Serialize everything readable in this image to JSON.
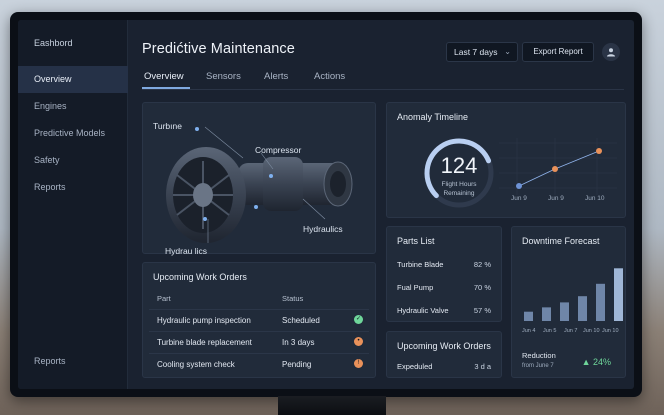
{
  "sidebar": {
    "brand": "Eashbord",
    "items": [
      {
        "label": "Overview"
      },
      {
        "label": "Engines"
      },
      {
        "label": "Predictive Models"
      },
      {
        "label": "Safety"
      },
      {
        "label": "Reports"
      }
    ],
    "bottom_item": "Reports"
  },
  "header": {
    "title": "Predićtive Maintenance",
    "range_selected": "Last 7 days",
    "export_label": "Export Report"
  },
  "tabs": [
    {
      "label": "Overview"
    },
    {
      "label": "Sensors"
    },
    {
      "label": "Alerts"
    },
    {
      "label": "Actions"
    }
  ],
  "engine": {
    "labels": {
      "turbine": "Turbıne",
      "compressor": "Compressor",
      "hydraulics_right": "Hydraulics",
      "hydraulics_left": "Hydrau lics"
    }
  },
  "work_orders": {
    "title": "Upcoming Work Orders",
    "columns": [
      "Part",
      "Status"
    ],
    "rows": [
      {
        "part": "Hydraulic pump inspection",
        "status": "Scheduled",
        "icon": "check-icon",
        "color": "#6fd69a"
      },
      {
        "part": "Turbine blade replacement",
        "status": "In 3 days",
        "icon": "clock-icon",
        "color": "#e9915a"
      },
      {
        "part": "Cooling system check",
        "status": "Pending",
        "icon": "alert-icon",
        "color": "#e9915a"
      }
    ]
  },
  "anomaly": {
    "title": "Anomaly Timeline",
    "gauge_value": "124",
    "gauge_label_1": "Flight Hours",
    "gauge_label_2": "Remaining",
    "gauge_fill_fraction": 0.75,
    "x_labels": [
      "Jun 9",
      "Jun 9",
      "Jun 10"
    ],
    "points": [
      {
        "color": "#6e93d6"
      },
      {
        "color": "#e9915a"
      },
      {
        "color": "#e9915a"
      }
    ]
  },
  "parts": {
    "title": "Parts List",
    "rows": [
      {
        "name": "Turbine Blade",
        "pct": "82 %"
      },
      {
        "name": "Fual Pump",
        "pct": "70 %"
      },
      {
        "name": "Hydraulic Valve",
        "pct": "57 %"
      }
    ]
  },
  "work_orders_small": {
    "title": "Upcoming Work Orders",
    "row_label": "Expeduled",
    "row_value": "3 d a"
  },
  "downtime": {
    "title": "Downtime Forecast",
    "bar_levels": [
      0.15,
      0.22,
      0.3,
      0.4,
      0.6,
      0.85
    ],
    "x_labels": [
      "Jun 4",
      "Jun 5",
      "Jun 7",
      "Jun 10",
      "Jun 10"
    ],
    "reduction_label": "Reduction",
    "reduction_sub": "from June 7",
    "reduction_value": "▲ 24%"
  },
  "colors": {
    "accent": "#7fa9e0",
    "positive": "#6fd69a",
    "warning": "#e9915a"
  }
}
